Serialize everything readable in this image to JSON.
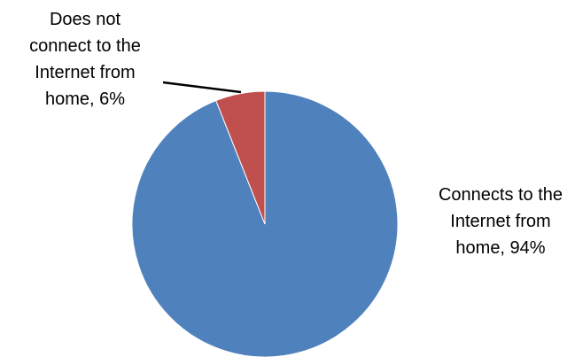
{
  "chart_data": {
    "type": "pie",
    "title": "",
    "slices": [
      {
        "name": "Connects to the Internet from home",
        "value": 94,
        "label_lines": [
          "Connects to the",
          "Internet from",
          "home, 94%"
        ],
        "color": "#4F81BD"
      },
      {
        "name": "Does not connect to the Internet from home",
        "value": 6,
        "label_lines": [
          "Does not",
          "connect to the",
          "Internet from",
          "home, 6%"
        ],
        "color": "#C0504D"
      }
    ],
    "start_angle": "12 o'clock",
    "direction": "clockwise",
    "legend": "none"
  }
}
